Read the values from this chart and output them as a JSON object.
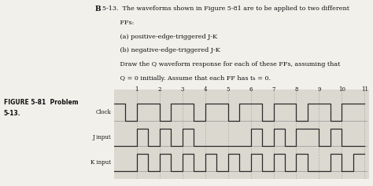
{
  "bg_color": "#e8e5e0",
  "text_bg": "#f0eeea",
  "wave_bg": "#d8d4cc",
  "waveform_color": "#2a2a2a",
  "grid_color": "#999999",
  "text_color": "#111111",
  "clock_label": "Clock",
  "j_label": "J input",
  "k_label": "K input",
  "xlabel_nums": [
    "1",
    "2",
    "3",
    "4",
    "5",
    "6",
    "7",
    "8",
    "9",
    "10",
    "11"
  ],
  "clock": [
    0,
    1,
    0.5,
    1,
    0.5,
    0,
    1,
    0,
    1,
    1,
    2,
    1,
    2,
    0,
    2.5,
    0,
    2.5,
    1,
    3.5,
    1,
    3.5,
    0,
    4,
    0,
    4,
    1,
    5,
    1,
    5,
    0,
    5.5,
    0,
    5.5,
    1,
    6.5,
    1,
    6.5,
    0,
    7,
    0,
    7,
    1,
    8,
    1,
    8,
    0,
    8.5,
    0,
    8.5,
    1,
    9.5,
    1,
    9.5,
    0,
    10,
    0,
    10,
    1,
    11,
    1
  ],
  "j_input": [
    0,
    0,
    1,
    0,
    1,
    1,
    1.5,
    1,
    1.5,
    0,
    2,
    0,
    2,
    1,
    2.5,
    1,
    2.5,
    0,
    3,
    0,
    3,
    1,
    3.5,
    1,
    3.5,
    0,
    5.5,
    0,
    5.5,
    0,
    6,
    0,
    6,
    1,
    6.5,
    1,
    6.5,
    0,
    7,
    0,
    7,
    1,
    7.5,
    1,
    7.5,
    0,
    8,
    0,
    8,
    1,
    9,
    1,
    9,
    0,
    9.5,
    0,
    9.5,
    1,
    10,
    1,
    10,
    0,
    11,
    0
  ],
  "k_input": [
    0,
    0,
    1,
    0,
    1,
    1,
    1.5,
    1,
    1.5,
    0,
    2,
    0,
    2,
    1,
    2.5,
    1,
    2.5,
    0,
    3,
    0,
    3,
    1,
    3.5,
    1,
    3.5,
    0,
    4,
    0,
    4,
    1,
    4.5,
    1,
    4.5,
    0,
    5,
    0,
    5,
    1,
    5.5,
    1,
    5.5,
    0,
    6,
    0,
    6,
    1,
    6.5,
    1,
    6.5,
    0,
    7,
    0,
    7,
    1,
    7.5,
    1,
    7.5,
    0,
    8,
    0,
    8,
    1,
    8.5,
    1,
    8.5,
    0,
    9.5,
    0,
    9.5,
    1,
    10,
    1,
    10,
    0,
    10.5,
    0,
    10.5,
    1,
    11,
    1
  ]
}
